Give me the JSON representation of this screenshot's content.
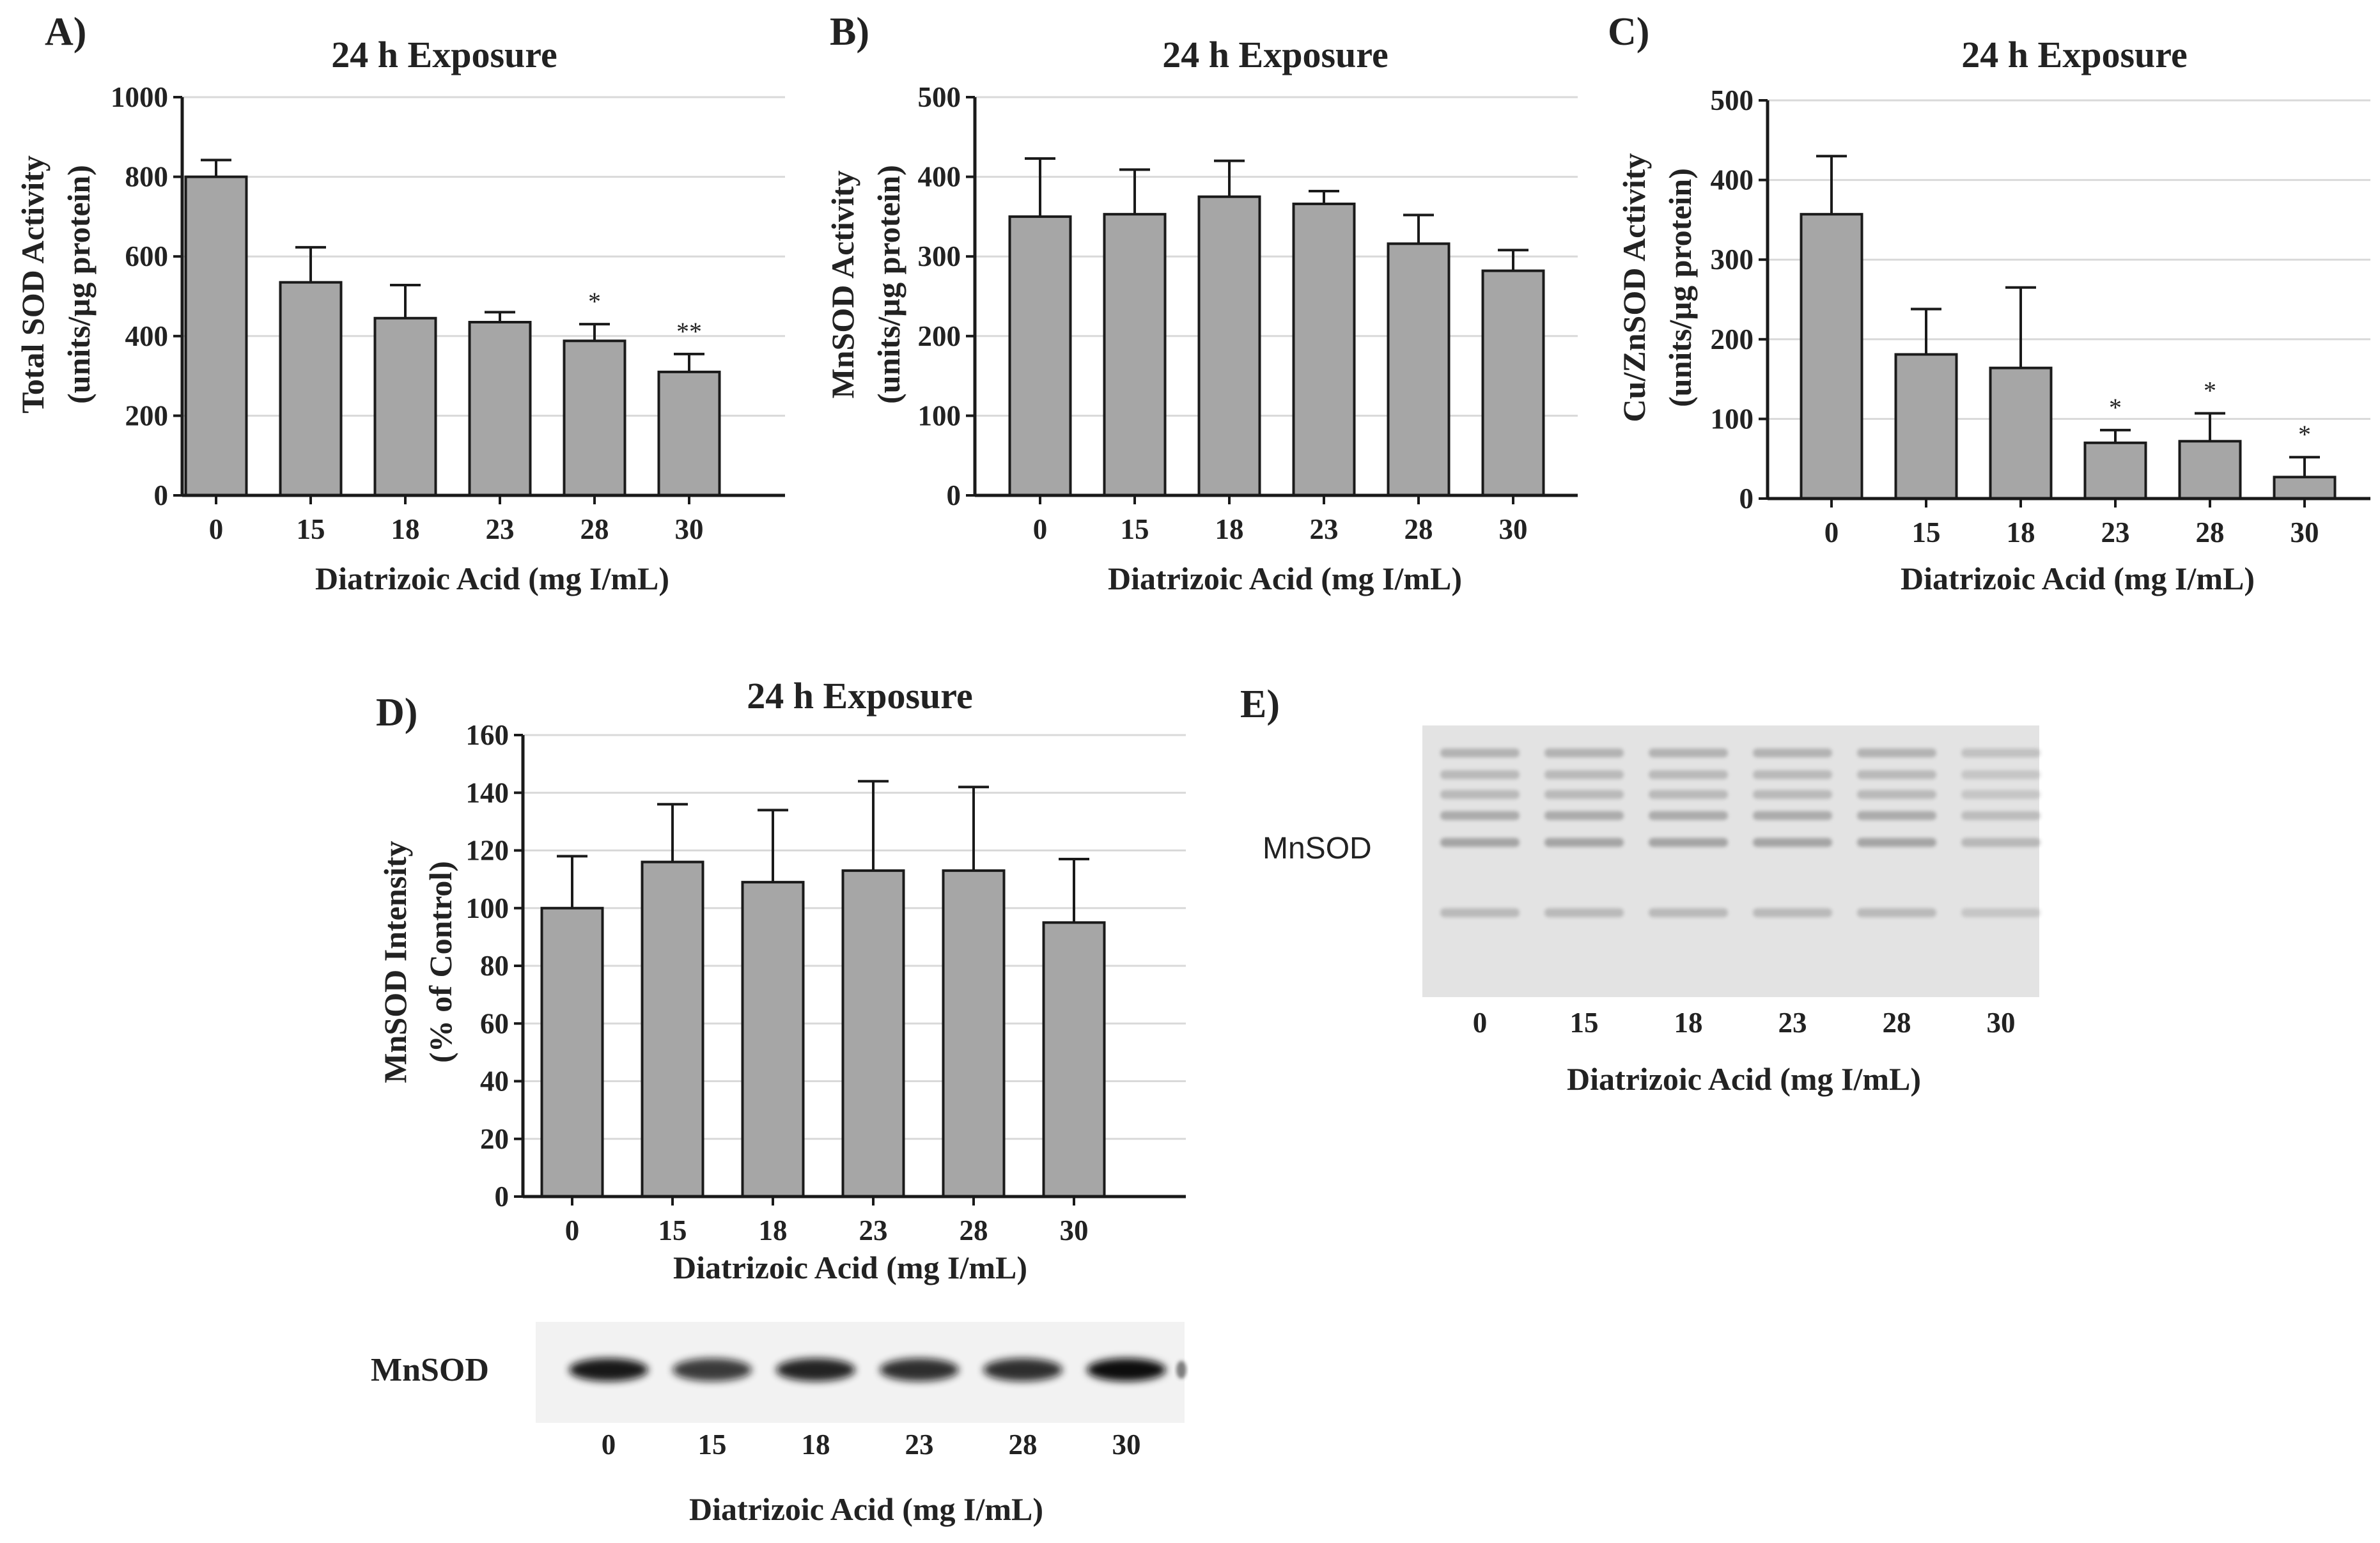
{
  "colors": {
    "bar": "#a6a6a6",
    "axis": "#1a1a1a",
    "grid": "#d9d9d9"
  },
  "chart_data": [
    {
      "panel": "A)",
      "type": "bar",
      "title": "24 h Exposure",
      "xlabel": "Diatrizoic Acid (mg I/mL)",
      "ylabel": [
        "Total SOD Activity",
        "(units/µg protein)"
      ],
      "categories": [
        "0",
        "15",
        "18",
        "23",
        "28",
        "30"
      ],
      "values": [
        800,
        535,
        445,
        435,
        388,
        310
      ],
      "errors": [
        42,
        88,
        83,
        25,
        42,
        45
      ],
      "significance": [
        "",
        "",
        "",
        "",
        "*",
        "**"
      ],
      "ylim": [
        0,
        1000
      ],
      "yticks": [
        0,
        200,
        400,
        600,
        800,
        1000
      ],
      "grid": true
    },
    {
      "panel": "B)",
      "type": "bar",
      "title": "24 h Exposure",
      "xlabel": "Diatrizoic Acid (mg I/mL)",
      "ylabel": [
        "MnSOD Activity",
        "(units/µg protein)"
      ],
      "categories": [
        "0",
        "15",
        "18",
        "23",
        "28",
        "30"
      ],
      "values": [
        350,
        353,
        375,
        366,
        316,
        282
      ],
      "errors": [
        73,
        56,
        45,
        16,
        36,
        26
      ],
      "significance": [
        "",
        "",
        "",
        "",
        "",
        ""
      ],
      "ylim": [
        0,
        500
      ],
      "yticks": [
        0,
        100,
        200,
        300,
        400,
        500
      ],
      "grid": true
    },
    {
      "panel": "C)",
      "type": "bar",
      "title": "24 h Exposure",
      "xlabel": "Diatrizoic Acid (mg I/mL)",
      "ylabel": [
        "Cu/ZnSOD Activity",
        "(units/µg protein)"
      ],
      "categories": [
        "0",
        "15",
        "18",
        "23",
        "28",
        "30"
      ],
      "values": [
        357,
        181,
        164,
        70,
        72,
        27
      ],
      "errors": [
        73,
        57,
        101,
        16,
        35,
        25
      ],
      "significance": [
        "",
        "",
        "",
        "*",
        "*",
        "*"
      ],
      "ylim": [
        0,
        500
      ],
      "yticks": [
        0,
        100,
        200,
        300,
        400,
        500
      ],
      "grid": true
    },
    {
      "panel": "D)",
      "type": "bar",
      "title": "24 h Exposure",
      "xlabel": "Diatrizoic Acid (mg I/mL)",
      "ylabel": [
        "MnSOD Intensity",
        "(% of Control)"
      ],
      "categories": [
        "0",
        "15",
        "18",
        "23",
        "28",
        "30"
      ],
      "values": [
        100,
        116,
        109,
        113,
        113,
        95
      ],
      "errors": [
        18,
        20,
        25,
        31,
        29,
        22
      ],
      "significance": [
        "",
        "",
        "",
        "",
        "",
        ""
      ],
      "ylim": [
        0,
        160
      ],
      "yticks": [
        0,
        20,
        40,
        60,
        80,
        100,
        120,
        140,
        160
      ],
      "grid": true
    }
  ],
  "blot_d": {
    "band_label": "MnSOD",
    "lanes": [
      "0",
      "15",
      "18",
      "23",
      "28",
      "30"
    ],
    "xlabel": "Diatrizoic Acid (mg I/mL)"
  },
  "blot_e": {
    "panel": "E)",
    "band_label": "MnSOD",
    "lanes": [
      "0",
      "15",
      "18",
      "23",
      "28",
      "30"
    ],
    "xlabel": "Diatrizoic Acid (mg I/mL)"
  }
}
